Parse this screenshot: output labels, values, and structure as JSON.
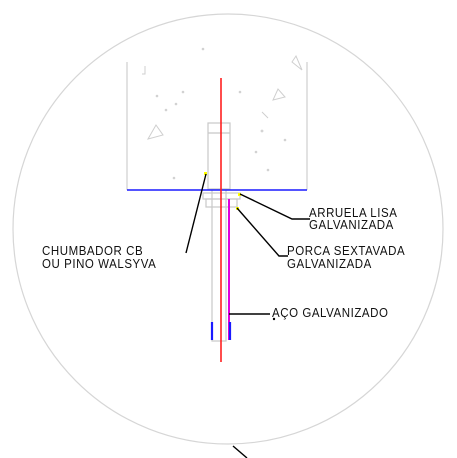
{
  "labels": {
    "arruela_line1": "ARRUELA LISA",
    "arruela_line2": "GALVANIZADA",
    "porca_line1": "PORCA SEXTAVADA",
    "porca_line2": "GALVANIZADA",
    "chumbador_line1": "CHUMBADOR CB",
    "chumbador_line2": "OU PINO WALSYVA",
    "aco": "AÇO GALVANIZADO"
  },
  "colors": {
    "circle": "#d6d6d6",
    "concrete_outline": "#cfcfcf",
    "surface_line": "#1a1aff",
    "axis_line": "#ff2020",
    "steel_line": "#e000e0",
    "leader": "#000000",
    "bolt": "#c8c8c8",
    "highlight": "#ffff00"
  }
}
